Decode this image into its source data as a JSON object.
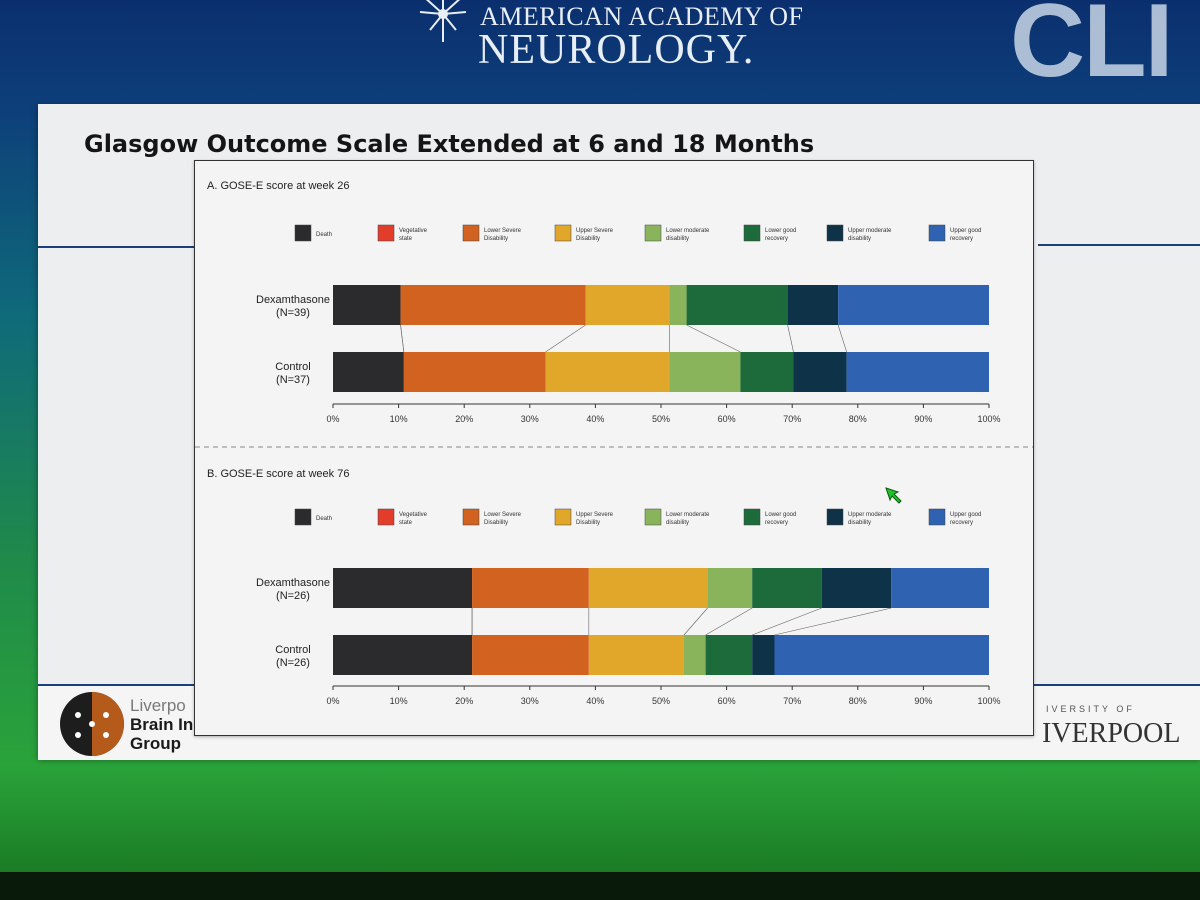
{
  "header": {
    "org_line1": "AMERICAN ACADEMY OF",
    "org_line2": "NEUROLOGY.",
    "partial_word": "CLI"
  },
  "slide": {
    "title": "Glasgow Outcome Scale Extended at 6 and 18 Months",
    "left_logo_line1": "Liverpo",
    "left_logo_line2": "Brain In",
    "left_logo_line3": "Group",
    "right_logo_small": "IVERSITY OF",
    "right_logo_big": "IVERPOOL"
  },
  "legend_colors": [
    "#2b2a2c",
    "#e23c2b",
    "#d2621f",
    "#e0a72a",
    "#89b45c",
    "#1d6a3a",
    "#0e3349",
    "#2f62b1"
  ],
  "chart_data": [
    {
      "type": "bar",
      "orientation": "horizontal",
      "stacked": true,
      "title": "A. GOSE-E score at week 26",
      "categories": [
        "Dexamthasone (N=39)",
        "Control (N=37)"
      ],
      "category_lines": [
        [
          "Dexamthasone",
          "(N=39)"
        ],
        [
          "Control",
          "(N=37)"
        ]
      ],
      "series": [
        {
          "name": "Death",
          "values": [
            10.3,
            10.8
          ]
        },
        {
          "name": "Vegetative state",
          "values": [
            0,
            0
          ]
        },
        {
          "name": "Lower Severe Disability",
          "values": [
            28.2,
            21.6
          ]
        },
        {
          "name": "Upper Severe Disability",
          "values": [
            12.8,
            18.9
          ]
        },
        {
          "name": "Lower moderate disability",
          "values": [
            2.6,
            10.8
          ]
        },
        {
          "name": "Lower good recovery",
          "values": [
            15.4,
            8.1
          ]
        },
        {
          "name": "Upper moderate disability",
          "values": [
            7.7,
            8.1
          ]
        },
        {
          "name": "Upper good recovery",
          "values": [
            23.0,
            21.7
          ]
        }
      ],
      "xlim": [
        0,
        100
      ],
      "xticks": [
        "0%",
        "10%",
        "20%",
        "30%",
        "40%",
        "50%",
        "60%",
        "70%",
        "80%",
        "90%",
        "100%"
      ],
      "legend_position": "top"
    },
    {
      "type": "bar",
      "orientation": "horizontal",
      "stacked": true,
      "title": "B. GOSE-E score at week 76",
      "categories": [
        "Dexamthasone (N=26)",
        "Control (N=26)"
      ],
      "category_lines": [
        [
          "Dexamthasone",
          "(N=26)"
        ],
        [
          "Control",
          "(N=26)"
        ]
      ],
      "series": [
        {
          "name": "Death",
          "values": [
            21.2,
            21.2
          ]
        },
        {
          "name": "Vegetative state",
          "values": [
            0,
            0
          ]
        },
        {
          "name": "Lower Severe Disability",
          "values": [
            17.8,
            17.8
          ]
        },
        {
          "name": "Upper Severe Disability",
          "values": [
            18.1,
            14.5
          ]
        },
        {
          "name": "Lower moderate disability",
          "values": [
            6.8,
            3.3
          ]
        },
        {
          "name": "Lower good recovery",
          "values": [
            10.6,
            7.1
          ]
        },
        {
          "name": "Upper moderate disability",
          "values": [
            10.6,
            3.4
          ]
        },
        {
          "name": "Upper good recovery",
          "values": [
            14.9,
            32.7
          ]
        }
      ],
      "xlim": [
        0,
        100
      ],
      "xticks": [
        "0%",
        "10%",
        "20%",
        "30%",
        "40%",
        "50%",
        "60%",
        "70%",
        "80%",
        "90%",
        "100%"
      ],
      "legend_position": "top"
    }
  ]
}
